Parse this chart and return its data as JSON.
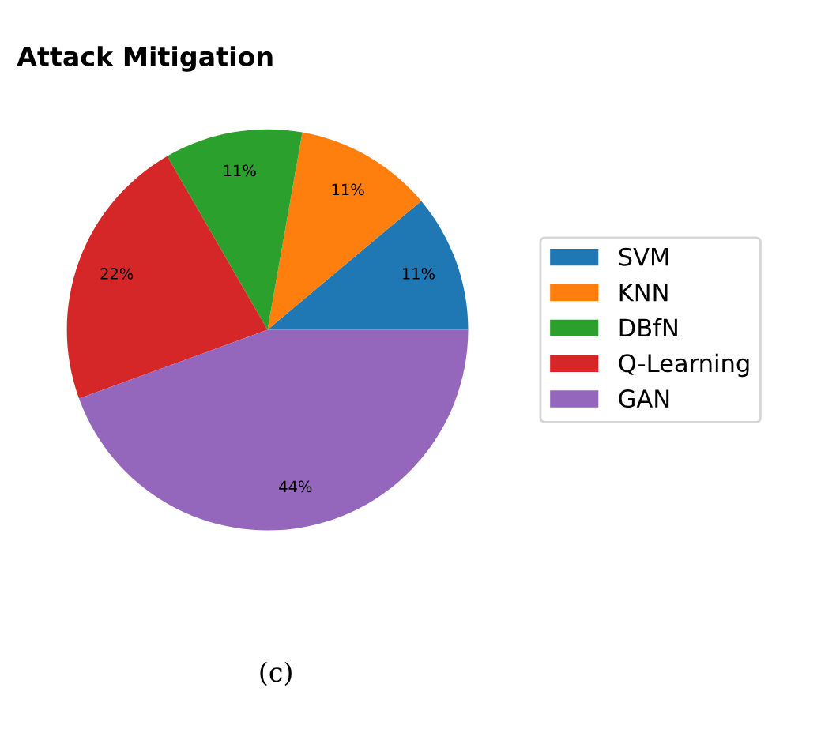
{
  "chart_data": {
    "type": "pie",
    "title": "Attack Mitigation",
    "categories": [
      "SVM",
      "KNN",
      "DBfN",
      "Q-Learning",
      "GAN"
    ],
    "values": [
      11,
      11,
      11,
      22,
      44
    ],
    "value_labels": [
      "11%",
      "11%",
      "11%",
      "22%",
      "44%"
    ],
    "colors": [
      "#1f77b4",
      "#ff7f0e",
      "#2ca02c",
      "#d62728",
      "#9467bd"
    ],
    "legend": "right",
    "annotations": [
      "(c)"
    ]
  }
}
